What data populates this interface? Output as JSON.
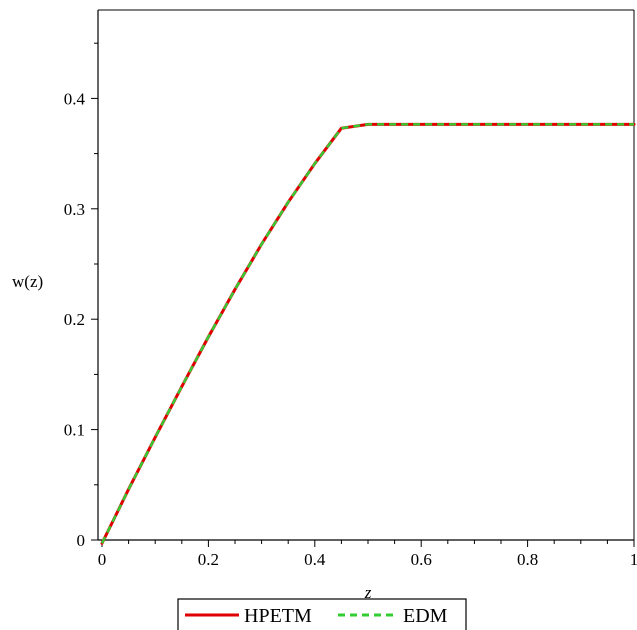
{
  "chart_data": {
    "type": "line",
    "xlabel": "z",
    "ylabel": "w(z)",
    "xlim": [
      0,
      1
    ],
    "ylim": [
      0,
      0.48
    ],
    "x_ticks": [
      "0",
      "0.2",
      "0.4",
      "0.6",
      "0.8",
      "1"
    ],
    "y_ticks": [
      "0",
      "0.1",
      "0.2",
      "0.3",
      "0.4"
    ],
    "grid": false,
    "legend_position": "bottom-center",
    "series": [
      {
        "name": "HPETM",
        "color": "#e00000",
        "style": "solid",
        "x": [
          0,
          0.05,
          0.1,
          0.15,
          0.2,
          0.25,
          0.3,
          0.35,
          0.4,
          0.45,
          0.5,
          0.55,
          0.6,
          0.65,
          0.7,
          0.75,
          0.8,
          0.85,
          0.9,
          0.95,
          1.0
        ],
        "y": [
          -0.003,
          0.046,
          0.093,
          0.139,
          0.184,
          0.227,
          0.268,
          0.306,
          0.341,
          0.373,
          0.3765,
          0.3765,
          0.3765,
          0.3765,
          0.3765,
          0.3765,
          0.3765,
          0.3765,
          0.3765,
          0.3765,
          0.3765
        ]
      },
      {
        "name": "EDM",
        "color": "#33cc33",
        "style": "dashed",
        "x": [
          0,
          0.05,
          0.1,
          0.15,
          0.2,
          0.25,
          0.3,
          0.35,
          0.4,
          0.45,
          0.5,
          0.55,
          0.6,
          0.65,
          0.7,
          0.75,
          0.8,
          0.85,
          0.9,
          0.95,
          1.0
        ],
        "y": [
          -0.003,
          0.046,
          0.093,
          0.139,
          0.184,
          0.227,
          0.268,
          0.306,
          0.341,
          0.373,
          0.3765,
          0.3765,
          0.3765,
          0.3765,
          0.3765,
          0.3765,
          0.3765,
          0.3765,
          0.3765,
          0.3765,
          0.3765
        ]
      }
    ]
  }
}
